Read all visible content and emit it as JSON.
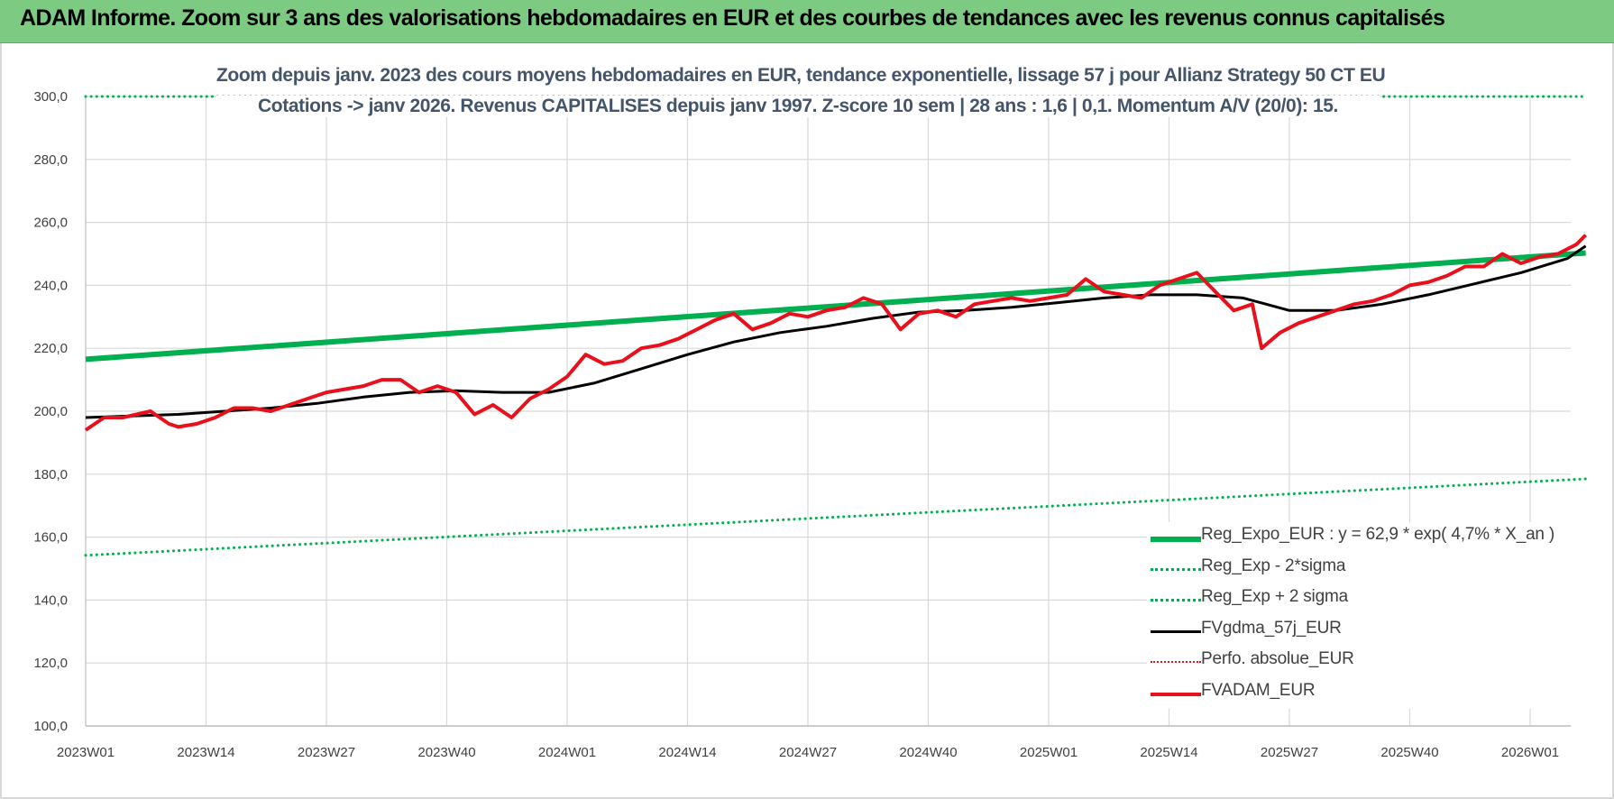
{
  "banner": {
    "title": "ADAM Informe. Zoom sur 3 ans des valorisations hebdomadaires en EUR et des courbes de tendances avec les revenus connus capitalisés"
  },
  "chart_data": {
    "type": "line",
    "title_lines": [
      "Zoom depuis janv. 2023 des cours moyens hebdomadaires en EUR, tendance exponentielle, lissage 57 j pour Allianz Strategy 50 CT EU",
      "Cotations -> janv 2026. Revenus CAPITALISES depuis janv 1997. Z-score 10 sem | 28 ans : 1,6 | 0,1. Momentum A/V (20/0): 15."
    ],
    "x_tick_labels": [
      "2023W01",
      "2023W14",
      "2023W27",
      "2023W40",
      "2024W01",
      "2024W14",
      "2024W27",
      "2024W40",
      "2025W01",
      "2025W14",
      "2025W27",
      "2025W40",
      "2026W01"
    ],
    "x_weeks_between_ticks": 13,
    "x_range": [
      0,
      162
    ],
    "y_tick_labels": [
      "100,0",
      "120,0",
      "140,0",
      "160,0",
      "180,0",
      "200,0",
      "220,0",
      "240,0",
      "260,0",
      "280,0",
      "300,0"
    ],
    "ylim": [
      100,
      300
    ],
    "legend_position": "bottom-right",
    "series": [
      {
        "name": "Reg_Expo_EUR : y = 62,9 * exp( 4,7% *  X_an )",
        "color": "#00b050",
        "style": "solid",
        "width": 6,
        "x": [
          0,
          162
        ],
        "values": [
          216.5,
          250.3
        ]
      },
      {
        "name": "Reg_Exp - 2*sigma",
        "color": "#00b050",
        "style": "dotted",
        "width": 3,
        "x": [
          0,
          162
        ],
        "values": [
          154.2,
          178.5
        ]
      },
      {
        "name": "Reg_Exp + 2 sigma",
        "color": "#00b050",
        "style": "dotted",
        "width": 3,
        "x": [
          0,
          162
        ],
        "values": [
          300.0,
          300.0
        ]
      },
      {
        "name": "FVgdma_57j_EUR",
        "color": "#000000",
        "style": "solid",
        "width": 3,
        "x": [
          0,
          5,
          10,
          15,
          20,
          25,
          30,
          35,
          40,
          45,
          50,
          55,
          60,
          65,
          70,
          75,
          80,
          85,
          90,
          95,
          100,
          105,
          110,
          115,
          120,
          125,
          130,
          135,
          140,
          145,
          150,
          155,
          160,
          162
        ],
        "values": [
          198.0,
          198.5,
          199.0,
          200.0,
          201.0,
          202.5,
          204.5,
          206.0,
          206.5,
          206.0,
          206.0,
          209.0,
          213.5,
          218.0,
          222.0,
          225.0,
          227.0,
          229.5,
          231.5,
          232.0,
          233.0,
          234.5,
          236.0,
          237.0,
          237.0,
          236.0,
          232.0,
          232.0,
          234.0,
          237.0,
          240.5,
          244.0,
          248.5,
          252.5
        ]
      },
      {
        "name": "Perfo. absolue_EUR",
        "color": "#e8111b",
        "style": "dotted",
        "width": 2,
        "x": [],
        "values": []
      },
      {
        "name": "FVADAM_EUR",
        "color": "#e8111b",
        "style": "solid",
        "width": 4,
        "x": [
          0,
          2,
          4,
          7,
          9,
          10,
          12,
          14,
          16,
          18,
          20,
          22,
          24,
          26,
          28,
          30,
          32,
          34,
          36,
          38,
          39,
          40,
          42,
          44,
          46,
          48,
          50,
          52,
          54,
          56,
          58,
          60,
          62,
          64,
          66,
          68,
          70,
          72,
          74,
          76,
          78,
          80,
          82,
          84,
          86,
          88,
          90,
          92,
          94,
          96,
          98,
          100,
          102,
          104,
          106,
          108,
          110,
          112,
          114,
          116,
          118,
          120,
          122,
          124,
          126,
          127,
          129,
          131,
          133,
          135,
          137,
          139,
          141,
          143,
          145,
          147,
          149,
          151,
          153,
          155,
          157,
          159,
          161,
          162
        ],
        "values": [
          194,
          198,
          198,
          200,
          196,
          195,
          196,
          198,
          201,
          201,
          200,
          202,
          204,
          206,
          207,
          208,
          210,
          210,
          206,
          208,
          207,
          206,
          199,
          202,
          198,
          204,
          207,
          211,
          218,
          215,
          216,
          220,
          221,
          223,
          226,
          229,
          231,
          226,
          228,
          231,
          230,
          232,
          233,
          236,
          234,
          226,
          231,
          232,
          230,
          234,
          235,
          236,
          235,
          236,
          237,
          242,
          238,
          237,
          236,
          240,
          242,
          244,
          238,
          232,
          234,
          220,
          225,
          228,
          230,
          232,
          234,
          235,
          237,
          240,
          241,
          243,
          246,
          246,
          250,
          247,
          249,
          250,
          253,
          256
        ]
      }
    ]
  }
}
